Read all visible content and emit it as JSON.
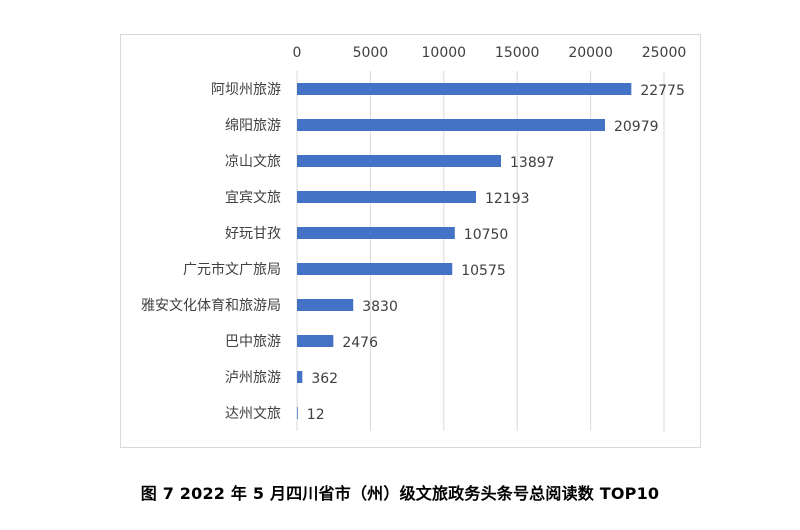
{
  "caption": "图 7 2022 年 5 月四川省市（州）级文旅政务头条号总阅读数 TOP10",
  "chart_data": {
    "type": "bar",
    "orientation": "horizontal",
    "title": "",
    "xlabel": "",
    "ylabel": "",
    "x_axis_position": "top",
    "xlim": [
      0,
      25000
    ],
    "xticks": [
      0,
      5000,
      10000,
      15000,
      20000,
      25000
    ],
    "grid": true,
    "legend": "none",
    "bar_color": "#4472C4",
    "categories": [
      "阿坝州旅游",
      "绵阳旅游",
      "凉山文旅",
      "宜宾文旅",
      "好玩甘孜",
      "广元市文广旅局",
      "雅安文化体育和旅游局",
      "巴中旅游",
      "泸州旅游",
      "达州文旅"
    ],
    "values": [
      22775,
      20979,
      13897,
      12193,
      10750,
      10575,
      3830,
      2476,
      362,
      12
    ]
  }
}
